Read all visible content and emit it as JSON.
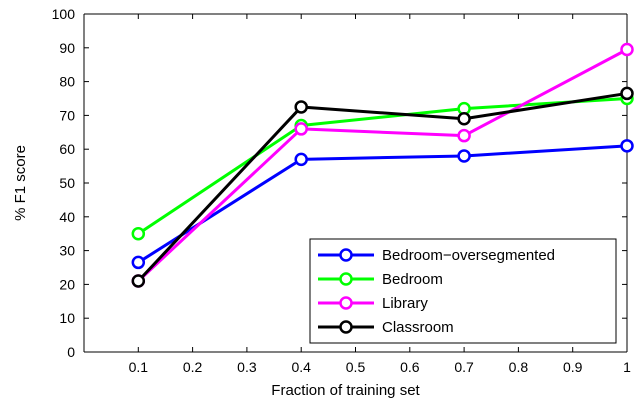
{
  "chart_data": {
    "type": "line",
    "title": "",
    "xlabel": "Fraction of training set",
    "ylabel": "% F1 score",
    "xlim": [
      0,
      1
    ],
    "ylim": [
      0,
      100
    ],
    "xticks": [
      "0.1",
      "0.2",
      "0.3",
      "0.4",
      "0.5",
      "0.6",
      "0.7",
      "0.8",
      "0.9",
      "1"
    ],
    "yticks": [
      "0",
      "10",
      "20",
      "30",
      "40",
      "50",
      "60",
      "70",
      "80",
      "90",
      "100"
    ],
    "grid": false,
    "legend_position": "bottom-right",
    "x": [
      0.1,
      0.4,
      0.7,
      1.0
    ],
    "series": [
      {
        "name": "Bedroom−oversegmented",
        "color": "#0000ff",
        "values": [
          26.5,
          57,
          58,
          61
        ]
      },
      {
        "name": "Bedroom",
        "color": "#00ff00",
        "values": [
          35,
          67,
          72,
          75
        ]
      },
      {
        "name": "Library",
        "color": "#ff00ff",
        "values": [
          21,
          66,
          64,
          89.5
        ]
      },
      {
        "name": "Classroom",
        "color": "#000000",
        "values": [
          21,
          72.5,
          69,
          76.5
        ]
      }
    ],
    "marker": "circle"
  }
}
